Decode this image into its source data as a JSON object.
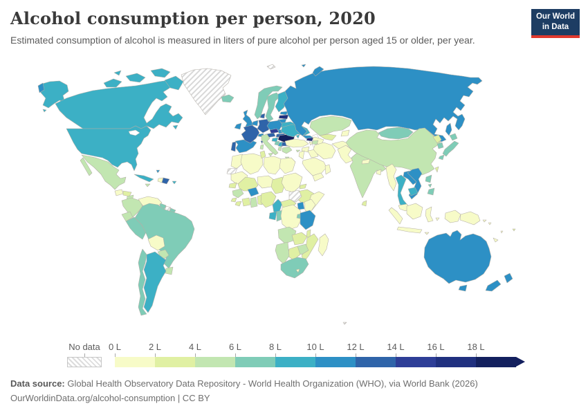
{
  "header": {
    "title": "Alcohol consumption per person, 2020",
    "subtitle": "Estimated consumption of alcohol is measured in liters of pure alcohol per person aged 15 or older, per year."
  },
  "logo": {
    "line1": "Our World",
    "line2": "in Data",
    "bg_color": "#1d3d63",
    "accent_color": "#e0392e"
  },
  "legend": {
    "no_data_label": "No data",
    "tick_labels": [
      "0 L",
      "2 L",
      "4 L",
      "6 L",
      "8 L",
      "10 L",
      "12 L",
      "14 L",
      "16 L",
      "18 L"
    ],
    "colors": [
      "#f7fbc8",
      "#e0f0a3",
      "#c2e6b1",
      "#7fccb7",
      "#3cb0c5",
      "#2d90c5",
      "#2f64a9",
      "#2e3e97",
      "#20307f",
      "#13205e"
    ]
  },
  "footer": {
    "source_label": "Data source:",
    "source_text": " Global Health Observatory Data Repository - World Health Organization (WHO), via World Bank (2026)",
    "license_line": "OurWorldinData.org/alcohol-consumption | CC BY"
  },
  "chart_data": {
    "type": "choropleth",
    "title": "Alcohol consumption per person",
    "year": 2020,
    "unit": "liters of pure alcohol per person aged 15 or older, per year",
    "bin_ranges": [
      "0–2 L",
      "2–4 L",
      "4–6 L",
      "6–8 L",
      "8–10 L",
      "10–12 L",
      "12–14 L",
      "14–16 L",
      "16–18 L",
      "18+ L"
    ],
    "no_data_value": -1,
    "regions": {
      "canada": 4,
      "united-states": 4,
      "greenland": -1,
      "iceland": 3,
      "mexico": 2,
      "guatemala": 0,
      "honduras": 1,
      "nicaragua": 2,
      "costa-rica": 1,
      "panama": 1,
      "cuba": 4,
      "jamaica": 2,
      "haiti": 0,
      "dominican-republic": 6,
      "puerto-rico": 4,
      "bahamas": 5,
      "colombia": 2,
      "venezuela": 0,
      "guyana": 3,
      "suriname": -1,
      "french-guiana": 3,
      "ecuador": 2,
      "peru": 3,
      "brazil": 3,
      "bolivia": 0,
      "paraguay": 2,
      "uruguay": 2,
      "argentina": 4,
      "chile": 3,
      "ireland": 5,
      "united-kingdom": 5,
      "portugal": 6,
      "spain": 5,
      "france": 6,
      "belgium-netherlands": 5,
      "germany": 6,
      "denmark": 6,
      "norway": 3,
      "sweden": 3,
      "finland": 4,
      "estonia": 5,
      "latvia": 8,
      "lithuania": 5,
      "poland": 5,
      "czechia": 7,
      "slovakia": 5,
      "austria": 6,
      "switzerland": 5,
      "italy": 2,
      "hungary": 6,
      "croatia": 4,
      "bosnia": 3,
      "serbia": 4,
      "albania": 2,
      "greece": 2,
      "bulgaria": 6,
      "romania": 9,
      "moldova": 5,
      "ukraine": 4,
      "belarus": 4,
      "russia": 5,
      "svalbard": -1,
      "kazakhstan": 2,
      "uzbekistan": 1,
      "turkmenistan": 0,
      "kyrgyzstan": 0,
      "georgia": 8,
      "azerbaijan": 2,
      "armenia": 0,
      "turkey": 0,
      "cyprus": 2,
      "syria": 0,
      "iraq": 0,
      "jordan": 0,
      "saudi-arabia": 0,
      "yemen": 0,
      "oman": 0,
      "iran": 0,
      "afghanistan": 0,
      "pakistan": 0,
      "india": 2,
      "nepal": 0,
      "bangladesh": 0,
      "sri-lanka": 1,
      "myanmar": 0,
      "china": 2,
      "mongolia": 3,
      "north-korea": 1,
      "south-korea": 3,
      "japan": 3,
      "taiwan": 1,
      "thailand": 4,
      "laos": 5,
      "vietnam": 5,
      "cambodia": 4,
      "malaysia": 0,
      "indonesia": 0,
      "philippines": 3,
      "papua-new-guinea": 0,
      "australia": 5,
      "new-zealand": 5,
      "fiji": 1,
      "new-caledonia": 0,
      "solomon-islands": 0,
      "vanuatu": 0,
      "morocco": 0,
      "western-sahara": -1,
      "algeria": 0,
      "tunisia": 1,
      "libya": 0,
      "egypt": 0,
      "mauritania": 0,
      "mali": 1,
      "niger": 0,
      "chad": 1,
      "sudan": 0,
      "south-sudan": -1,
      "eritrea": 1,
      "ethiopia": 1,
      "somalia": 0,
      "senegal": 1,
      "guinea": 2,
      "sierra-leone": 1,
      "liberia": 1,
      "ivory-coast": 1,
      "burkina-faso": 5,
      "ghana": 2,
      "togo-benin": 1,
      "nigeria": 1,
      "cameroon": 4,
      "central-african-republic": 1,
      "uganda": 5,
      "kenya": 0,
      "gabon": 4,
      "congo": 3,
      "dr-congo": 0,
      "rwanda-burundi": 3,
      "tanzania": 5,
      "angola": 2,
      "zambia": 1,
      "malawi": 1,
      "mozambique": 1,
      "zimbabwe": 2,
      "botswana": 1,
      "namibia": 2,
      "south-africa": 3,
      "lesotho": 0,
      "madagascar": 0,
      "french-southern-territories": -1
    }
  }
}
